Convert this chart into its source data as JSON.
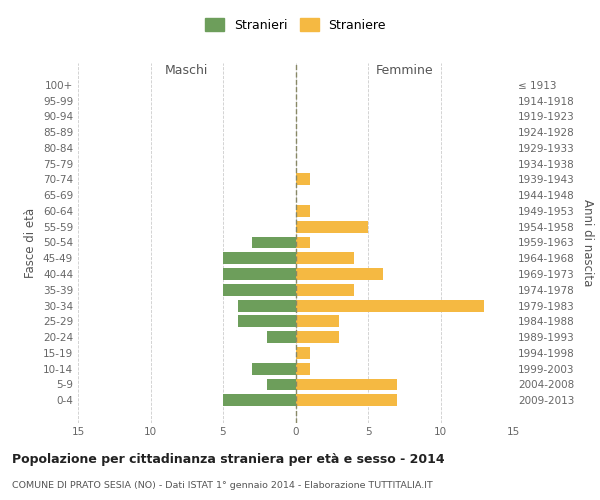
{
  "age_groups": [
    "100+",
    "95-99",
    "90-94",
    "85-89",
    "80-84",
    "75-79",
    "70-74",
    "65-69",
    "60-64",
    "55-59",
    "50-54",
    "45-49",
    "40-44",
    "35-39",
    "30-34",
    "25-29",
    "20-24",
    "15-19",
    "10-14",
    "5-9",
    "0-4"
  ],
  "birth_years": [
    "≤ 1913",
    "1914-1918",
    "1919-1923",
    "1924-1928",
    "1929-1933",
    "1934-1938",
    "1939-1943",
    "1944-1948",
    "1949-1953",
    "1954-1958",
    "1959-1963",
    "1964-1968",
    "1969-1973",
    "1974-1978",
    "1979-1983",
    "1984-1988",
    "1989-1993",
    "1994-1998",
    "1999-2003",
    "2004-2008",
    "2009-2013"
  ],
  "maschi": [
    0,
    0,
    0,
    0,
    0,
    0,
    0,
    0,
    0,
    0,
    3,
    5,
    5,
    5,
    4,
    4,
    2,
    0,
    3,
    2,
    5
  ],
  "femmine": [
    0,
    0,
    0,
    0,
    0,
    0,
    1,
    0,
    1,
    5,
    1,
    4,
    6,
    4,
    13,
    3,
    3,
    1,
    1,
    7,
    7
  ],
  "maschi_color": "#6d9e5b",
  "femmine_color": "#f5b942",
  "background_color": "#ffffff",
  "grid_color": "#cccccc",
  "title": "Popolazione per cittadinanza straniera per età e sesso - 2014",
  "subtitle": "COMUNE DI PRATO SESIA (NO) - Dati ISTAT 1° gennaio 2014 - Elaborazione TUTTITALIA.IT",
  "xlabel_left": "Maschi",
  "xlabel_right": "Femmine",
  "ylabel_left": "Fasce di età",
  "ylabel_right": "Anni di nascita",
  "legend_maschi": "Stranieri",
  "legend_femmine": "Straniere",
  "xlim": 15
}
